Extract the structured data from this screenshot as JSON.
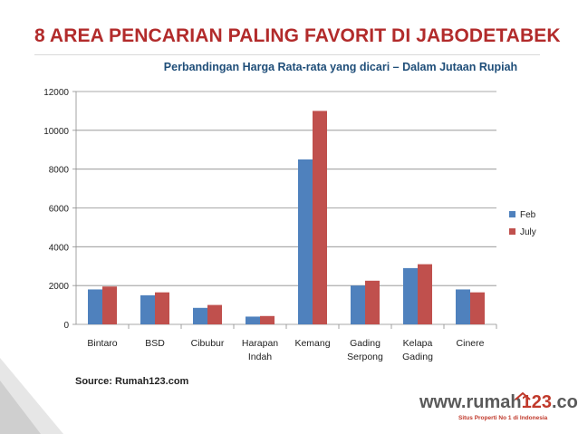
{
  "slide": {
    "title": "8 AREA PENCARIAN PALING FAVORIT DI JABODETABEK",
    "source": "Source: Rumah123.com"
  },
  "brand": {
    "prefix": "www.rumah",
    "number": "123",
    "suffix": ".com",
    "tagline": "Situs Properti No 1 di Indonesia",
    "icon": "house-icon"
  },
  "colors": {
    "title": "#B22B2B",
    "subtitle": "#1F4E79",
    "feb": "#4F81BD",
    "july": "#C0504D",
    "brand_red": "#C0392B"
  },
  "chart_data": {
    "type": "bar",
    "title": "Perbandingan Harga Rata-rata yang dicari – Dalam Jutaan Rupiah",
    "categories": [
      [
        "Bintaro"
      ],
      [
        "BSD"
      ],
      [
        "Cibubur"
      ],
      [
        "Harapan",
        "Indah"
      ],
      [
        "Kemang"
      ],
      [
        "Gading",
        "Serpong"
      ],
      [
        "Kelapa",
        "Gading"
      ],
      [
        "Cinere"
      ]
    ],
    "series": [
      {
        "name": "Feb",
        "color": "#4F81BD",
        "values": [
          1800,
          1500,
          850,
          400,
          8500,
          2000,
          2900,
          1800
        ]
      },
      {
        "name": "July",
        "color": "#C0504D",
        "values": [
          1950,
          1650,
          1000,
          430,
          11000,
          2250,
          3100,
          1650
        ]
      }
    ],
    "ylim": [
      0,
      12000
    ],
    "yticks": [
      "0",
      "2000",
      "4000",
      "6000",
      "8000",
      "10000",
      "12000"
    ],
    "grid": true,
    "legend": "right"
  }
}
